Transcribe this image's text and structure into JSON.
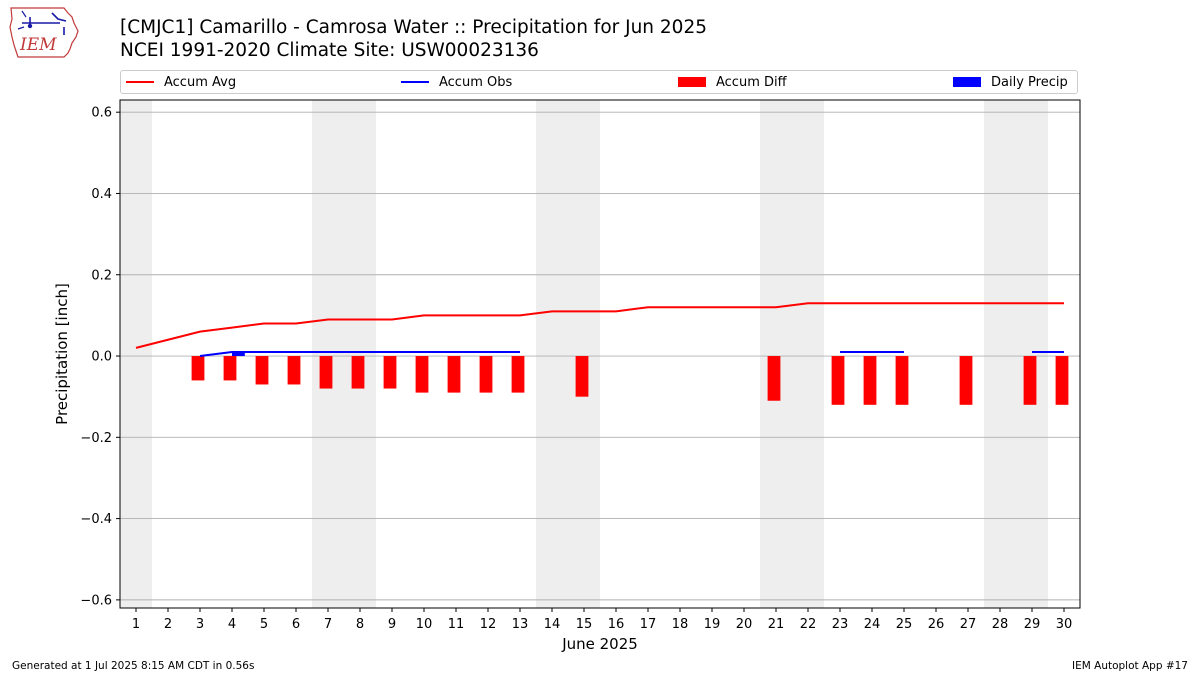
{
  "header": {
    "title_line1": "[CMJC1] Camarillo - Camrosa Water :: Precipitation for Jun 2025",
    "title_line2": "NCEI 1991-2020 Climate Site: USW00023136"
  },
  "logo": {
    "text": "IEM",
    "icon": "iem-iowa-logo"
  },
  "legend": {
    "accum_avg": "Accum Avg",
    "accum_obs": "Accum Obs",
    "accum_diff": "Accum Diff",
    "daily_precip": "Daily Precip"
  },
  "colors": {
    "accum_avg": "#ff0000",
    "accum_obs": "#0000ff",
    "accum_diff": "#ff0000",
    "daily_precip": "#0000ff",
    "weekend_shade": "#eeeeee",
    "grid": "#b0b0b0"
  },
  "footer": {
    "left": "Generated at 1 Jul 2025 8:15 AM CDT in 0.56s",
    "right": "IEM Autoplot App #17"
  },
  "chart_data": {
    "type": "line",
    "xlabel": "June 2025",
    "ylabel": "Precipitation [inch]",
    "ylim": [
      -0.62,
      0.63
    ],
    "yticks": [
      -0.6,
      -0.4,
      -0.2,
      0.0,
      0.2,
      0.4,
      0.6
    ],
    "ytick_labels": [
      "−0.6",
      "−0.4",
      "−0.2",
      "0.0",
      "0.2",
      "0.4",
      "0.6"
    ],
    "x": [
      1,
      2,
      3,
      4,
      5,
      6,
      7,
      8,
      9,
      10,
      11,
      12,
      13,
      14,
      15,
      16,
      17,
      18,
      19,
      20,
      21,
      22,
      23,
      24,
      25,
      26,
      27,
      28,
      29,
      30
    ],
    "xlim": [
      0.5,
      30.5
    ],
    "grid": "horizontal",
    "legend_position": "top",
    "weekend_shading": [
      [
        0.5,
        1.5
      ],
      [
        6.5,
        8.5
      ],
      [
        13.5,
        15.5
      ],
      [
        20.5,
        22.5
      ],
      [
        27.5,
        29.5
      ]
    ],
    "series": [
      {
        "name": "Accum Avg",
        "kind": "line",
        "x": [
          1,
          2,
          3,
          4,
          5,
          6,
          7,
          8,
          9,
          10,
          11,
          12,
          13,
          14,
          15,
          16,
          17,
          18,
          19,
          20,
          21,
          22,
          23,
          24,
          25,
          26,
          27,
          28,
          29,
          30
        ],
        "values": [
          0.02,
          0.04,
          0.06,
          0.07,
          0.08,
          0.08,
          0.09,
          0.09,
          0.09,
          0.1,
          0.1,
          0.1,
          0.1,
          0.11,
          0.11,
          0.11,
          0.12,
          0.12,
          0.12,
          0.12,
          0.12,
          0.13,
          0.13,
          0.13,
          0.13,
          0.13,
          0.13,
          0.13,
          0.13,
          0.13
        ]
      },
      {
        "name": "Accum Obs",
        "kind": "step",
        "segments": [
          {
            "x": [
              3,
              4,
              5,
              6,
              7,
              8,
              9,
              10,
              11,
              12,
              13
            ],
            "values": [
              0.0,
              0.01,
              0.01,
              0.01,
              0.01,
              0.01,
              0.01,
              0.01,
              0.01,
              0.01,
              0.01
            ]
          },
          {
            "x": [
              23,
              24,
              25
            ],
            "values": [
              0.01,
              0.01,
              0.01
            ]
          },
          {
            "x": [
              29,
              30
            ],
            "values": [
              0.01,
              0.01
            ]
          }
        ]
      },
      {
        "name": "Accum Diff",
        "kind": "bar",
        "x": [
          3,
          4,
          5,
          6,
          7,
          8,
          9,
          10,
          11,
          12,
          13,
          15,
          21,
          23,
          24,
          25,
          27,
          29,
          30
        ],
        "values": [
          -0.06,
          -0.06,
          -0.07,
          -0.07,
          -0.08,
          -0.08,
          -0.08,
          -0.09,
          -0.09,
          -0.09,
          -0.09,
          -0.1,
          -0.11,
          -0.12,
          -0.12,
          -0.12,
          -0.12,
          -0.12,
          -0.12
        ]
      },
      {
        "name": "Daily Precip",
        "kind": "bar",
        "x": [
          4
        ],
        "values": [
          0.01
        ]
      }
    ]
  }
}
